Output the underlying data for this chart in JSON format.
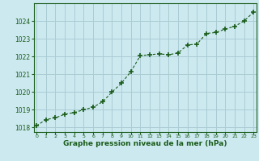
{
  "x": [
    0,
    1,
    2,
    3,
    4,
    5,
    6,
    7,
    8,
    9,
    10,
    11,
    12,
    13,
    14,
    15,
    16,
    17,
    18,
    19,
    20,
    21,
    22,
    23
  ],
  "y": [
    1018.1,
    1018.45,
    1018.55,
    1018.75,
    1018.85,
    1019.0,
    1019.15,
    1019.45,
    1020.0,
    1020.5,
    1021.15,
    1022.05,
    1022.1,
    1022.15,
    1022.1,
    1022.2,
    1022.65,
    1022.7,
    1023.3,
    1023.35,
    1023.55,
    1023.7,
    1024.0,
    1024.5
  ],
  "line_color": "#1a5c1a",
  "marker": "+",
  "marker_size": 4,
  "marker_linewidth": 1.2,
  "line_width": 0.8,
  "bg_color": "#cce9f0",
  "grid_color": "#aaccd4",
  "xlabel": "Graphe pression niveau de la mer (hPa)",
  "xlabel_color": "#1a5c1a",
  "tick_color": "#1a5c1a",
  "ylim": [
    1017.75,
    1025.0
  ],
  "yticks": [
    1018,
    1019,
    1020,
    1021,
    1022,
    1023,
    1024
  ],
  "xticks": [
    0,
    1,
    2,
    3,
    4,
    5,
    6,
    7,
    8,
    9,
    10,
    11,
    12,
    13,
    14,
    15,
    16,
    17,
    18,
    19,
    20,
    21,
    22,
    23
  ],
  "xlim": [
    -0.3,
    23.3
  ]
}
